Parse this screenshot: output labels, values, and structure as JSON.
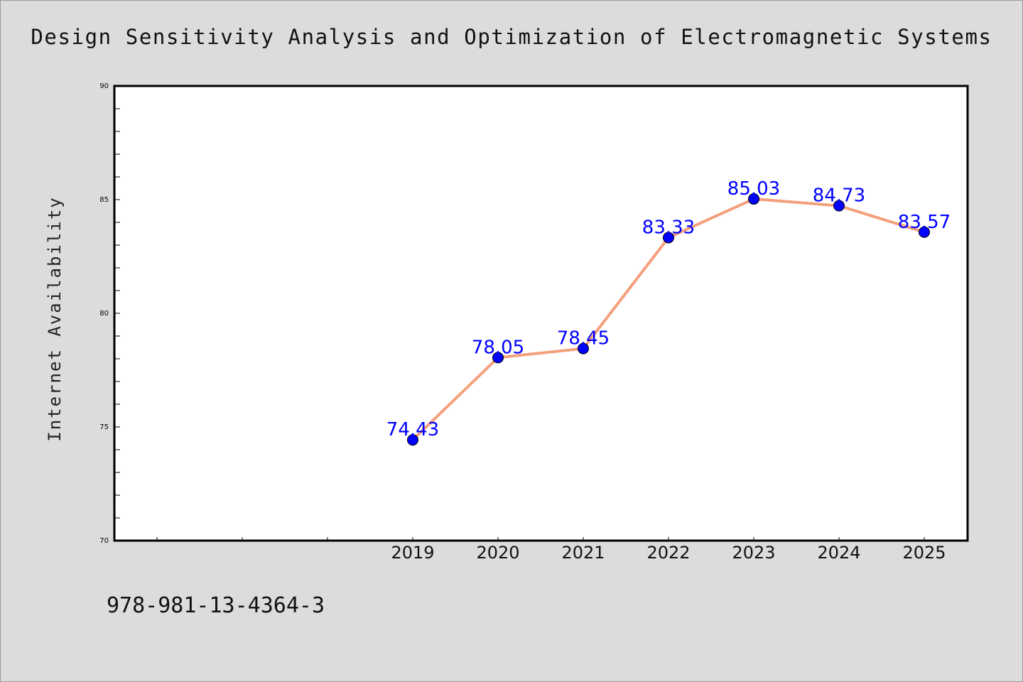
{
  "chart_data": {
    "type": "line",
    "title": "Design Sensitivity Analysis and Optimization of Electromagnetic Systems",
    "ylabel": "Internet Availability",
    "xlabel": "",
    "categories": [
      "2019",
      "2020",
      "2021",
      "2022",
      "2023",
      "2024",
      "2025"
    ],
    "series": [
      {
        "values": [
          74.43,
          78.05,
          78.45,
          83.33,
          85.03,
          84.73,
          83.57
        ],
        "labels": [
          "74.43",
          "78.05",
          "78.45",
          "83.33",
          "85.03",
          "84.73",
          "83.57"
        ],
        "line_color": "#f4a07c",
        "marker_color": "#0000ff"
      }
    ],
    "ylim": [
      70,
      90
    ],
    "y_ticks": [
      "70",
      "75",
      "80",
      "85",
      "90"
    ],
    "grid": false,
    "legend": "none"
  },
  "footer": {
    "isbn": "978-981-13-4364-3"
  },
  "colors": {
    "background": "#dcdcdc",
    "plot_background": "#ffffff",
    "data_label": "#0000ff"
  }
}
